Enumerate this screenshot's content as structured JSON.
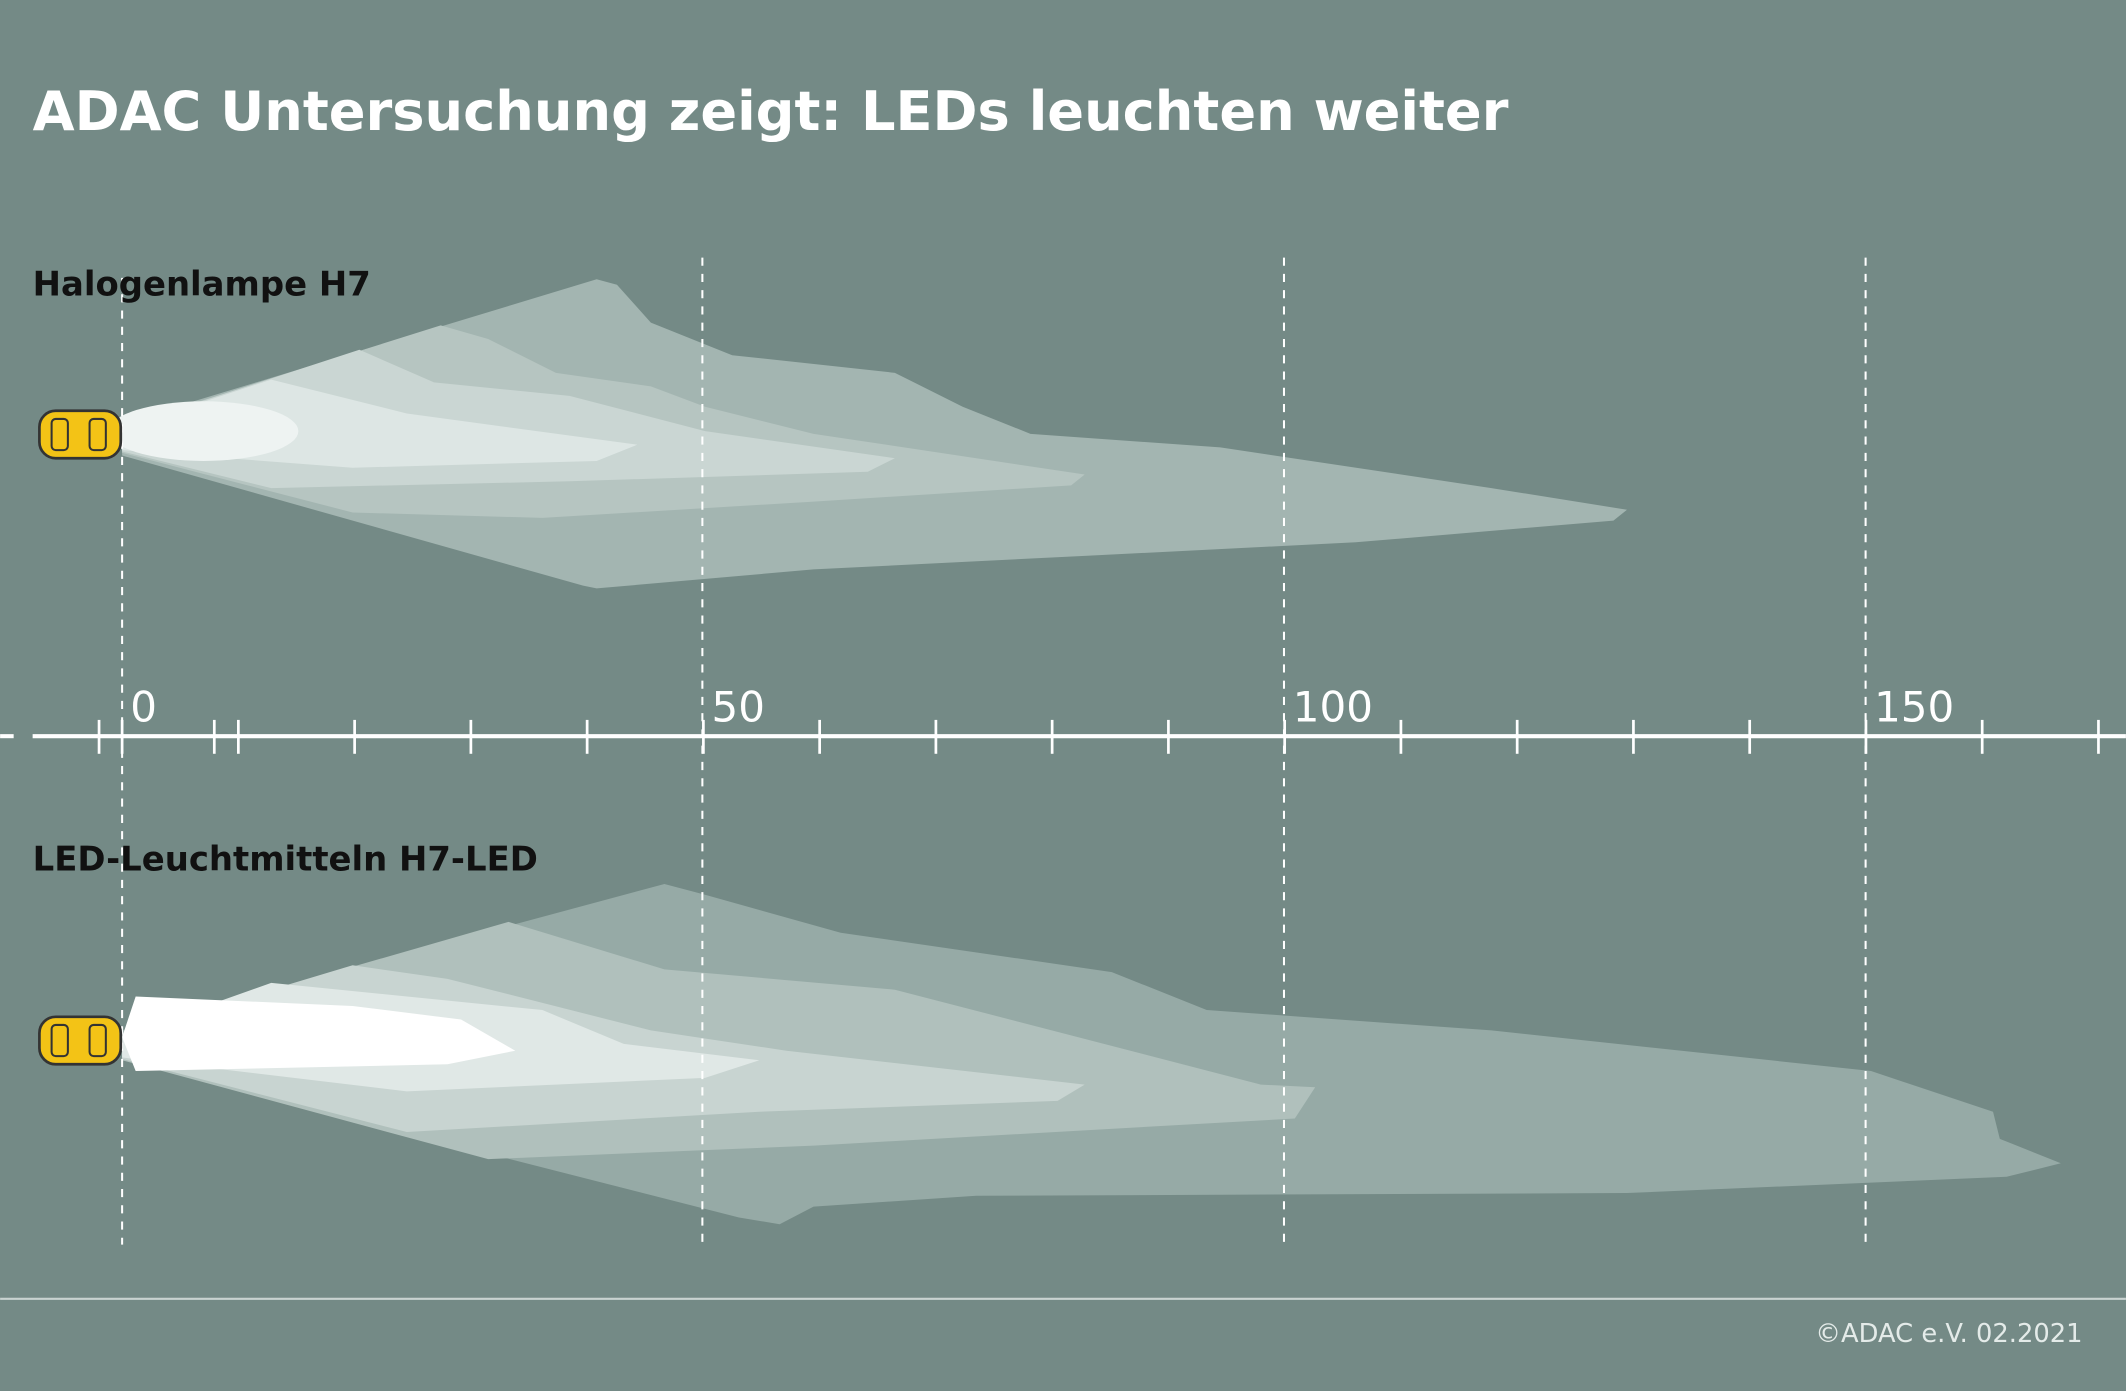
{
  "title": "ADAC Untersuchung zeigt: LEDs leuchten weiter",
  "sections": [
    {
      "label": "Halogenlampe H7"
    },
    {
      "label": "LED-Leuchtmitteln H7-LED"
    }
  ],
  "axis": {
    "tick_labels": [
      "0",
      "50",
      "100",
      "150"
    ]
  },
  "credit": "©ADAC e.V.  02.2021"
}
